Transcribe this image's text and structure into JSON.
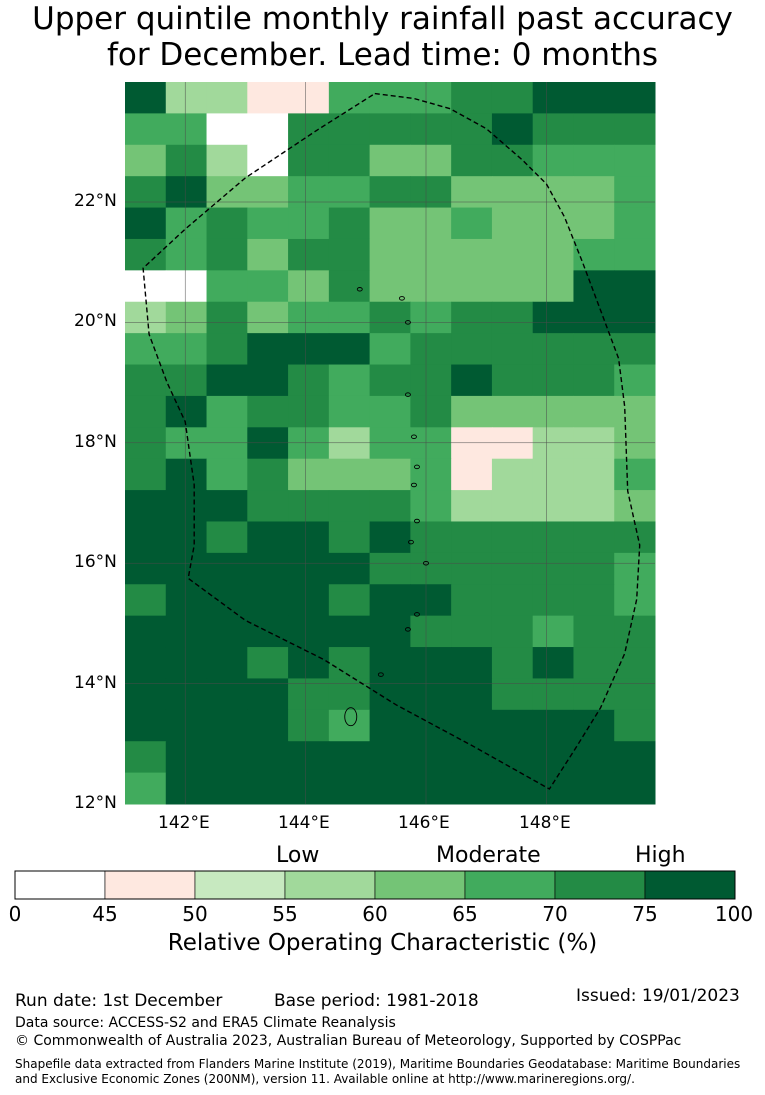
{
  "title": {
    "line1": "Upper quintile monthly rainfall past accuracy",
    "line2": "for December. Lead time: 0 months"
  },
  "map": {
    "lon_labels": [
      "142°E",
      "144°E",
      "146°E",
      "148°E"
    ],
    "lat_labels": [
      "22°N",
      "20°N",
      "18°N",
      "16°N",
      "14°N",
      "12°N"
    ],
    "lon_range": [
      141.0,
      149.8
    ],
    "lat_range": [
      12.0,
      24.0
    ],
    "cell_size_deg": 0.83,
    "roc_grid_rows_north_to_south": [
      [
        75,
        55,
        55,
        45,
        45,
        65,
        65,
        65,
        70,
        70,
        75,
        75,
        75
      ],
      [
        65,
        65,
        0,
        0,
        70,
        70,
        70,
        70,
        70,
        75,
        70,
        70,
        70
      ],
      [
        60,
        70,
        55,
        0,
        70,
        70,
        60,
        60,
        70,
        70,
        65,
        65,
        65
      ],
      [
        70,
        75,
        60,
        60,
        65,
        65,
        70,
        70,
        60,
        60,
        60,
        60,
        65
      ],
      [
        75,
        65,
        70,
        65,
        65,
        70,
        60,
        60,
        65,
        60,
        60,
        60,
        65
      ],
      [
        70,
        65,
        70,
        60,
        70,
        70,
        60,
        60,
        60,
        60,
        60,
        65,
        65
      ],
      [
        0,
        0,
        65,
        65,
        60,
        70,
        60,
        60,
        60,
        60,
        60,
        75,
        75
      ],
      [
        55,
        60,
        70,
        60,
        65,
        65,
        70,
        65,
        70,
        70,
        75,
        75,
        75
      ],
      [
        65,
        65,
        70,
        75,
        75,
        75,
        65,
        70,
        70,
        70,
        70,
        70,
        70
      ],
      [
        70,
        70,
        75,
        75,
        70,
        65,
        70,
        70,
        75,
        70,
        70,
        70,
        65
      ],
      [
        70,
        75,
        65,
        70,
        70,
        65,
        65,
        70,
        60,
        60,
        60,
        60,
        60
      ],
      [
        70,
        65,
        65,
        75,
        65,
        55,
        65,
        65,
        45,
        45,
        55,
        55,
        60
      ],
      [
        70,
        75,
        65,
        70,
        60,
        60,
        60,
        65,
        45,
        55,
        55,
        55,
        65
      ],
      [
        75,
        75,
        75,
        70,
        70,
        70,
        70,
        65,
        55,
        55,
        55,
        55,
        60
      ],
      [
        75,
        75,
        70,
        75,
        75,
        70,
        75,
        70,
        70,
        70,
        70,
        70,
        70
      ],
      [
        75,
        75,
        75,
        75,
        75,
        75,
        70,
        70,
        70,
        70,
        70,
        70,
        65
      ],
      [
        70,
        75,
        75,
        75,
        75,
        70,
        75,
        75,
        70,
        70,
        70,
        70,
        65
      ],
      [
        75,
        75,
        75,
        75,
        75,
        75,
        75,
        70,
        70,
        70,
        65,
        70,
        70
      ],
      [
        75,
        75,
        75,
        70,
        75,
        70,
        75,
        75,
        75,
        70,
        75,
        70,
        70
      ],
      [
        75,
        75,
        75,
        75,
        70,
        70,
        75,
        75,
        75,
        70,
        70,
        70,
        70
      ],
      [
        75,
        75,
        75,
        75,
        70,
        65,
        75,
        75,
        75,
        75,
        75,
        75,
        70
      ],
      [
        70,
        75,
        75,
        75,
        75,
        75,
        75,
        75,
        75,
        75,
        75,
        75,
        75
      ],
      [
        65,
        75,
        75,
        75,
        75,
        75,
        75,
        75,
        75,
        75,
        75,
        75,
        75
      ]
    ],
    "eez_boundary_lonlat": [
      [
        145.15,
        23.8
      ],
      [
        145.8,
        23.72
      ],
      [
        146.4,
        23.55
      ],
      [
        147.0,
        23.22
      ],
      [
        147.6,
        22.7
      ],
      [
        148.0,
        22.3
      ],
      [
        148.3,
        21.75
      ],
      [
        148.6,
        21.0
      ],
      [
        148.9,
        20.2
      ],
      [
        149.2,
        19.4
      ],
      [
        149.3,
        18.6
      ],
      [
        149.35,
        17.2
      ],
      [
        149.55,
        16.3
      ],
      [
        149.5,
        15.4
      ],
      [
        149.3,
        14.5
      ],
      [
        148.9,
        13.6
      ],
      [
        148.5,
        12.95
      ],
      [
        148.05,
        12.25
      ],
      [
        146.8,
        12.95
      ],
      [
        145.5,
        13.65
      ],
      [
        144.3,
        14.4
      ],
      [
        143.0,
        15.05
      ],
      [
        142.05,
        15.75
      ],
      [
        142.15,
        16.3
      ],
      [
        142.15,
        17.3
      ],
      [
        142.0,
        18.35
      ],
      [
        141.7,
        19.0
      ],
      [
        141.4,
        19.8
      ],
      [
        141.3,
        20.9
      ],
      [
        142.0,
        21.55
      ],
      [
        143.0,
        22.4
      ],
      [
        144.2,
        23.2
      ],
      [
        145.15,
        23.8
      ]
    ],
    "islands_lonlat": [
      [
        144.75,
        13.45
      ],
      [
        145.25,
        14.15
      ],
      [
        145.7,
        14.9
      ],
      [
        145.85,
        15.15
      ],
      [
        145.75,
        16.35
      ],
      [
        145.85,
        16.7
      ],
      [
        145.8,
        17.3
      ],
      [
        145.85,
        17.6
      ],
      [
        145.8,
        18.1
      ],
      [
        145.7,
        18.8
      ],
      [
        145.7,
        20.0
      ],
      [
        145.6,
        20.4
      ],
      [
        144.9,
        20.55
      ],
      [
        146.0,
        16.0
      ]
    ]
  },
  "colorbar": {
    "category_labels": [
      "Low",
      "Moderate",
      "High"
    ],
    "tick_labels": [
      "0",
      "45",
      "50",
      "55",
      "60",
      "65",
      "70",
      "75",
      "100"
    ],
    "bins": [
      {
        "from": 0,
        "to": 45,
        "color": "#ffffff"
      },
      {
        "from": 45,
        "to": 50,
        "color": "#fee8e0"
      },
      {
        "from": 50,
        "to": 55,
        "color": "#c7e9c0"
      },
      {
        "from": 55,
        "to": 60,
        "color": "#a1d99b"
      },
      {
        "from": 60,
        "to": 65,
        "color": "#74c476"
      },
      {
        "from": 65,
        "to": 70,
        "color": "#41ab5d"
      },
      {
        "from": 70,
        "to": 75,
        "color": "#238b45"
      },
      {
        "from": 75,
        "to": 100,
        "color": "#005a32"
      }
    ],
    "title": "Relative Operating Characteristic (%)"
  },
  "footer": {
    "run_date": "Run date: 1st December",
    "base_period": "Base period: 1981-2018",
    "issued": "Issued: 19/01/2023",
    "data_source": "Data source: ACCESS-S2 and ERA5 Climate Reanalysis",
    "copyright": "© Commonwealth of Australia 2023, Australian Bureau of Meteorology, Supported by COSPPac",
    "shapefile_line1": "Shapefile data extracted from Flanders Marine Institute (2019), Maritime Boundaries Geodatabase: Maritime Boundaries",
    "shapefile_line2": "and Exclusive Economic Zones (200NM), version 11. Available online at http://www.marineregions.org/."
  }
}
